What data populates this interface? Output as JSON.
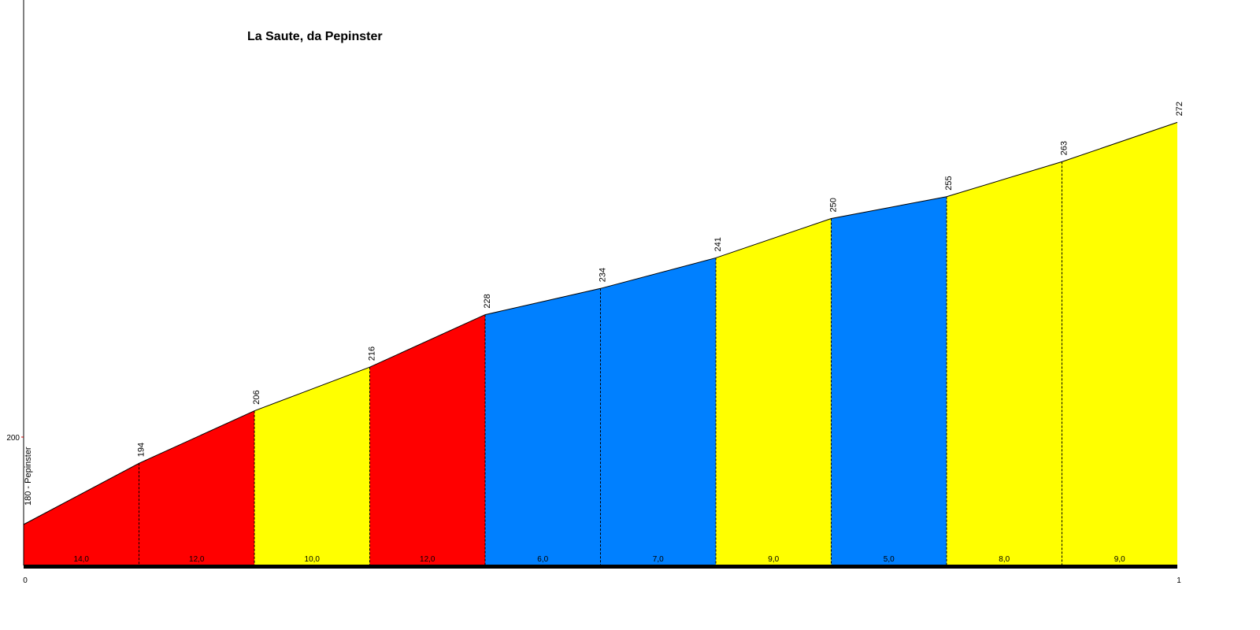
{
  "chart_data": {
    "type": "area",
    "title": "La Saute, da Pepinster",
    "xlabel": "",
    "ylabel": "",
    "xlim": [
      0,
      1
    ],
    "ylim": [
      166,
      290
    ],
    "x_ticks": [
      "0",
      "1"
    ],
    "y_ticks": [
      200
    ],
    "y_tick_labels": [
      "200"
    ],
    "start_label": "180 - Pepinster",
    "points": [
      180,
      194,
      206,
      216,
      228,
      234,
      241,
      250,
      255,
      263,
      272
    ],
    "point_labels": [
      "180 - Pepinster",
      "194",
      "206",
      "216",
      "228",
      "234",
      "241",
      "250",
      "255",
      "263",
      "272"
    ],
    "segments": [
      {
        "gradient": 14,
        "label": "14,0",
        "color": "#ff0000"
      },
      {
        "gradient": 12,
        "label": "12,0",
        "color": "#ff0000"
      },
      {
        "gradient": 10,
        "label": "10,0",
        "color": "#ffff00"
      },
      {
        "gradient": 12,
        "label": "12,0",
        "color": "#ff0000"
      },
      {
        "gradient": 6,
        "label": "6,0",
        "color": "#0080ff"
      },
      {
        "gradient": 7,
        "label": "7,0",
        "color": "#0080ff"
      },
      {
        "gradient": 9,
        "label": "9,0",
        "color": "#ffff00"
      },
      {
        "gradient": 5,
        "label": "5,0",
        "color": "#0080ff"
      },
      {
        "gradient": 8,
        "label": "8,0",
        "color": "#ffff00"
      },
      {
        "gradient": 9,
        "label": "9,0",
        "color": "#ffff00"
      }
    ],
    "grid": false,
    "legend": "none"
  }
}
